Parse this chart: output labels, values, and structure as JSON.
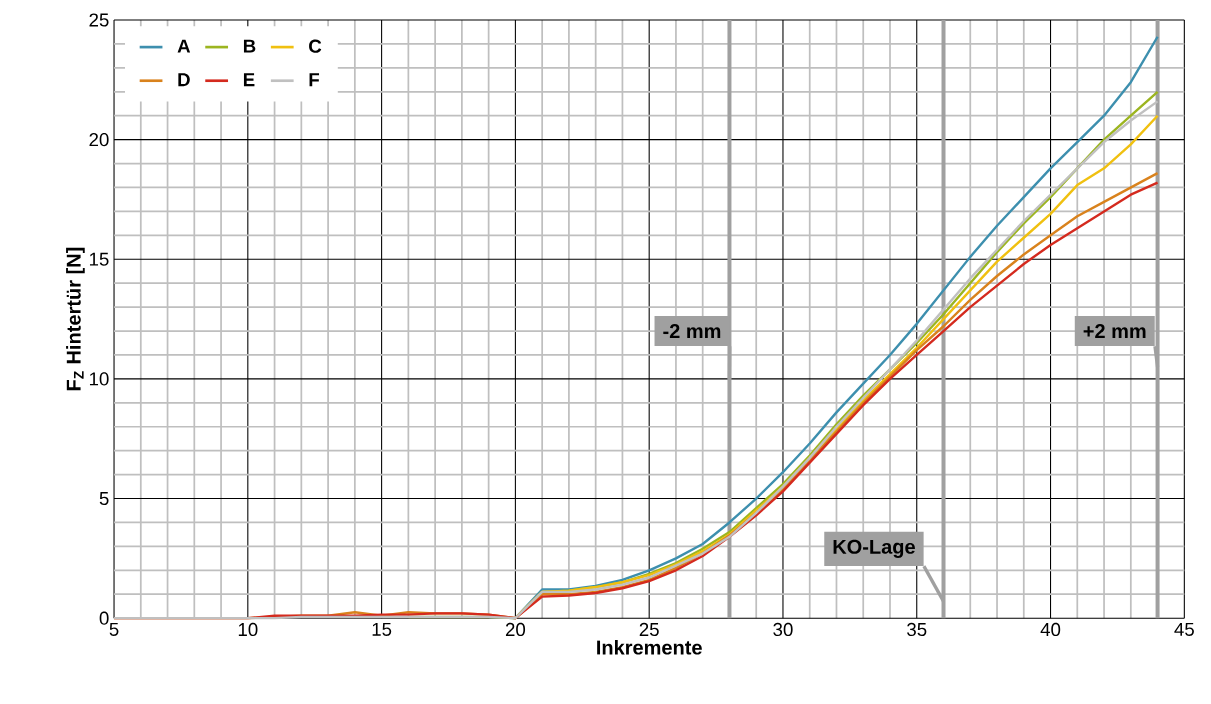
{
  "chart_data": {
    "type": "line",
    "xlabel": "Inkremente",
    "ylabel": "F$_{Z}$ Hintertür [N]",
    "x": [
      5,
      10,
      11,
      12,
      13,
      14,
      15,
      16,
      17,
      18,
      19,
      20,
      21,
      22,
      23,
      24,
      25,
      26,
      27,
      28,
      29,
      30,
      31,
      32,
      33,
      34,
      35,
      36,
      37,
      38,
      39,
      40,
      41,
      42,
      43,
      44
    ],
    "series": [
      {
        "name": "A",
        "color": "#3d8fae",
        "values": [
          null,
          null,
          null,
          null,
          null,
          null,
          null,
          null,
          null,
          null,
          0.05,
          0,
          1.2,
          1.2,
          1.35,
          1.6,
          2.0,
          2.5,
          3.1,
          4.0,
          5.0,
          6.1,
          7.3,
          8.6,
          9.8,
          11.0,
          12.3,
          13.7,
          15.1,
          16.4,
          17.6,
          18.8,
          19.9,
          21.0,
          22.4,
          24.3
        ]
      },
      {
        "name": "B",
        "color": "#9cb520",
        "values": [
          null,
          null,
          null,
          null,
          null,
          null,
          null,
          0.05,
          0.05,
          0.05,
          0.05,
          0,
          1.1,
          1.15,
          1.3,
          1.5,
          1.85,
          2.3,
          2.9,
          3.6,
          4.6,
          5.6,
          6.8,
          8.1,
          9.3,
          10.4,
          11.5,
          12.7,
          14.0,
          15.3,
          16.5,
          17.6,
          18.8,
          20.0,
          21.0,
          22.0
        ]
      },
      {
        "name": "C",
        "color": "#f0c010",
        "values": [
          null,
          null,
          null,
          null,
          null,
          null,
          null,
          null,
          null,
          null,
          null,
          0,
          1.1,
          1.15,
          1.3,
          1.5,
          1.8,
          2.25,
          2.8,
          3.5,
          4.5,
          5.5,
          6.7,
          7.9,
          9.1,
          10.2,
          11.3,
          12.5,
          13.7,
          14.9,
          15.9,
          16.9,
          18.1,
          18.8,
          19.8,
          21.0
        ]
      },
      {
        "name": "D",
        "color": "#d9821c",
        "values": [
          0,
          0,
          0.05,
          0.1,
          0.1,
          0.25,
          0.1,
          0.25,
          0.2,
          0.2,
          0.15,
          0,
          1.0,
          1.0,
          1.1,
          1.3,
          1.6,
          2.1,
          2.7,
          3.45,
          4.4,
          5.4,
          6.6,
          7.8,
          9.0,
          10.1,
          11.2,
          12.2,
          13.3,
          14.3,
          15.2,
          16.0,
          16.8,
          17.4,
          18.0,
          18.6
        ]
      },
      {
        "name": "E",
        "color": "#d42a1e",
        "values": [
          0,
          0,
          0.1,
          0.1,
          0.1,
          0.1,
          0.15,
          0.15,
          0.2,
          0.2,
          0.15,
          0,
          0.9,
          0.95,
          1.05,
          1.25,
          1.55,
          2.0,
          2.6,
          3.4,
          4.3,
          5.3,
          6.5,
          7.7,
          8.9,
          10.0,
          11.0,
          12.0,
          13.0,
          13.9,
          14.8,
          15.6,
          16.3,
          17.0,
          17.7,
          18.2
        ]
      },
      {
        "name": "F",
        "color": "#c0c0c0",
        "values": [
          0,
          0,
          0,
          0.05,
          0.05,
          0.05,
          0.05,
          0.05,
          0.05,
          0.05,
          0.05,
          0,
          1.1,
          1.1,
          1.2,
          1.4,
          1.7,
          2.2,
          2.7,
          3.4,
          4.4,
          5.5,
          6.7,
          8.0,
          9.2,
          10.4,
          11.6,
          12.9,
          14.2,
          15.4,
          16.6,
          17.7,
          18.8,
          19.9,
          20.8,
          21.6
        ]
      }
    ],
    "ref_lines": [
      {
        "axis": "x",
        "value": 28,
        "label": "-2 mm",
        "color": "#a0a0a0"
      },
      {
        "axis": "x",
        "value": 36,
        "label": "KO-Lage",
        "color": "#a0a0a0"
      },
      {
        "axis": "x",
        "value": 44,
        "label": "+2 mm",
        "color": "#a0a0a0"
      }
    ],
    "xlim": [
      5,
      45
    ],
    "ylim": [
      0,
      25
    ],
    "xticks": [
      5,
      10,
      15,
      20,
      25,
      30,
      35,
      40,
      45
    ],
    "yticks": [
      0,
      5,
      10,
      15,
      20,
      25
    ],
    "grid": true,
    "legend": "top left",
    "marker": "none",
    "line_style": "solid"
  }
}
